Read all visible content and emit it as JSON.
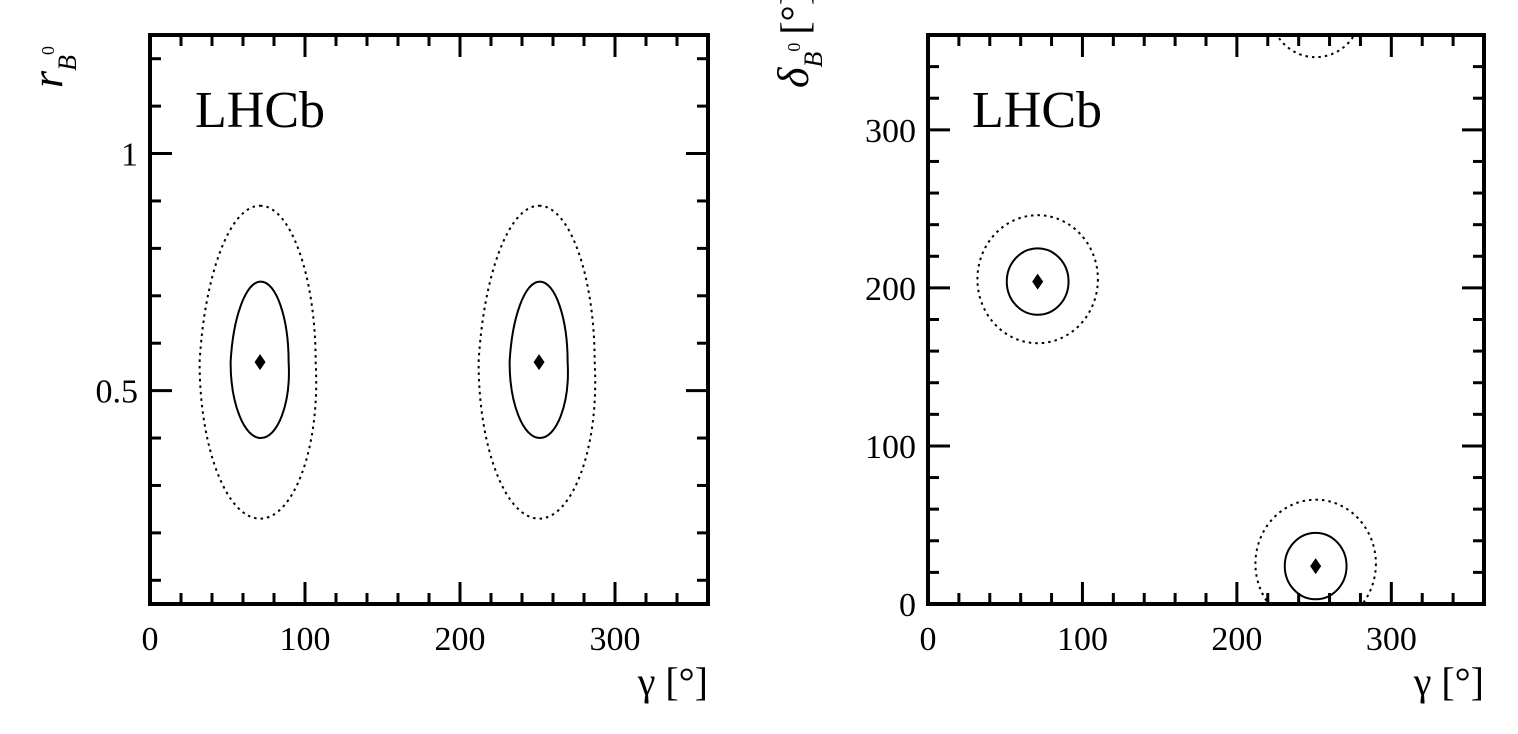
{
  "chart_data": [
    {
      "type": "contour",
      "label": "LHCb",
      "xlabel": "γ [°]",
      "ylabel": {
        "main": "r",
        "sub": "B",
        "sup": "0"
      },
      "xlim": [
        0,
        360
      ],
      "ylim": [
        0.05,
        1.25
      ],
      "xticks": [
        0,
        100,
        200,
        300
      ],
      "xtick_labels": [
        "0",
        "100",
        "200",
        "300"
      ],
      "yticks": [
        0.5,
        1
      ],
      "ytick_labels": [
        "0.5",
        "1"
      ],
      "best_fit_points": [
        {
          "x": 71,
          "y": 0.56
        },
        {
          "x": 251,
          "y": 0.56
        }
      ],
      "contours": [
        {
          "style": "solid",
          "center": [
            71,
            0.56
          ],
          "x_range": [
            52,
            91
          ],
          "y_range": [
            0.4,
            0.73
          ]
        },
        {
          "style": "dotted",
          "center": [
            71,
            0.56
          ],
          "x_range": [
            32,
            110
          ],
          "y_range": [
            0.23,
            0.89
          ]
        },
        {
          "style": "solid",
          "center": [
            251,
            0.56
          ],
          "x_range": [
            232,
            271
          ],
          "y_range": [
            0.4,
            0.73
          ]
        },
        {
          "style": "dotted",
          "center": [
            251,
            0.56
          ],
          "x_range": [
            212,
            290
          ],
          "y_range": [
            0.23,
            0.89
          ]
        }
      ]
    },
    {
      "type": "contour",
      "label": "LHCb",
      "xlabel": "γ [°]",
      "ylabel": {
        "main": "δ",
        "sub": "B",
        "sup": "0",
        "unit": "[°]"
      },
      "xlim": [
        0,
        360
      ],
      "ylim": [
        0,
        360
      ],
      "xticks": [
        0,
        100,
        200,
        300
      ],
      "xtick_labels": [
        "0",
        "100",
        "200",
        "300"
      ],
      "yticks": [
        0,
        100,
        200,
        300
      ],
      "ytick_labels": [
        "0",
        "100",
        "200",
        "300"
      ],
      "best_fit_points": [
        {
          "x": 71,
          "y": 204
        },
        {
          "x": 251,
          "y": 24
        }
      ],
      "contours": [
        {
          "style": "solid",
          "center": [
            71,
            204
          ],
          "x_range": [
            51,
            91
          ],
          "y_range": [
            183,
            225
          ]
        },
        {
          "style": "dotted",
          "center": [
            71,
            204
          ],
          "x_range": [
            32,
            110
          ],
          "y_range": [
            165,
            246
          ]
        },
        {
          "style": "solid",
          "center": [
            251,
            24
          ],
          "x_range": [
            231,
            271
          ],
          "y_range": [
            3,
            45
          ]
        },
        {
          "style": "dotted",
          "center": [
            251,
            24
          ],
          "x_range": [
            212,
            290
          ],
          "y_range": [
            -15,
            66
          ]
        },
        {
          "style": "dotted-arc",
          "center": [
            251,
            384
          ],
          "x_range": [
            222,
            280
          ],
          "y_range": [
            346,
            360
          ]
        }
      ]
    }
  ]
}
